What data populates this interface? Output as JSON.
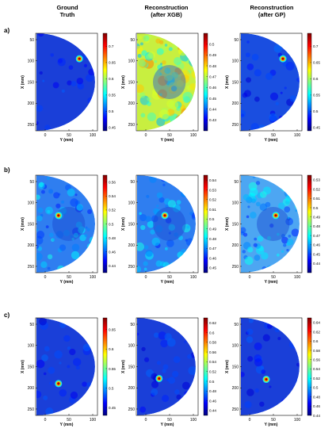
{
  "columns": [
    {
      "line1": "Ground",
      "line2": "Truth"
    },
    {
      "line1": "Reconstruction",
      "line2": "(after XGB)"
    },
    {
      "line1": "Reconstruction",
      "line2": "(after GP)"
    }
  ],
  "axes": {
    "xlabel": "Y (mm)",
    "ylabel": "X (mm)",
    "x_ticks": [
      "0",
      "50",
      "100"
    ],
    "y_ticks": [
      "50",
      "100",
      "150",
      "200",
      "250"
    ]
  },
  "rows": [
    {
      "label": "a)",
      "panels": [
        {
          "name": "ground-truth",
          "clim": [
            0.44,
            0.74
          ],
          "cbar_ticks": [
            "0.7",
            "0.65",
            "0.6",
            "0.55",
            "0.5",
            "0.45"
          ],
          "bg": "#1a3fd8",
          "noise": "low",
          "lesion": {
            "y": 72,
            "x": 95
          }
        },
        {
          "name": "xgb",
          "clim": [
            0.42,
            0.51
          ],
          "cbar_ticks": [
            "0.5",
            "0.49",
            "0.48",
            "0.47",
            "0.46",
            "0.45",
            "0.44",
            "0.43"
          ],
          "bg": "#c8ef40",
          "noise": "high",
          "lesion": null
        },
        {
          "name": "gp",
          "clim": [
            0.44,
            0.74
          ],
          "cbar_ticks": [
            "0.7",
            "0.65",
            "0.6",
            "0.55",
            "0.5",
            "0.45"
          ],
          "bg": "#1a4ee0",
          "noise": "low",
          "lesion": {
            "y": 70,
            "x": 95
          }
        }
      ]
    },
    {
      "label": "b)",
      "panels": [
        {
          "name": "ground-truth",
          "clim": [
            0.43,
            0.57
          ],
          "cbar_ticks": [
            "0.56",
            "0.54",
            "0.52",
            "0.5",
            "0.48",
            "0.46",
            "0.44"
          ],
          "bg": "#2f7ef0",
          "noise": "mid",
          "lesion": {
            "y": 28,
            "x": 130
          }
        },
        {
          "name": "xgb",
          "clim": [
            0.445,
            0.545
          ],
          "cbar_ticks": [
            "0.54",
            "0.53",
            "0.52",
            "0.51",
            "0.5",
            "0.49",
            "0.48",
            "0.47",
            "0.46",
            "0.45"
          ],
          "bg": "#2f7ef0",
          "noise": "mid",
          "lesion": {
            "y": 40,
            "x": 130
          }
        },
        {
          "name": "gp",
          "clim": [
            0.43,
            0.535
          ],
          "cbar_ticks": [
            "0.53",
            "0.52",
            "0.51",
            "0.5",
            "0.49",
            "0.48",
            "0.47",
            "0.46",
            "0.45",
            "0.44"
          ],
          "bg": "#4da6f2",
          "noise": "mid",
          "lesion": {
            "y": 55,
            "x": 130
          }
        }
      ]
    },
    {
      "label": "c)",
      "panels": [
        {
          "name": "ground-truth",
          "clim": [
            0.43,
            0.68
          ],
          "cbar_ticks": [
            "0.65",
            "0.6",
            "0.55",
            "0.5",
            "0.45"
          ],
          "bg": "#1a3fd8",
          "noise": "low",
          "lesion": {
            "y": 28,
            "x": 190
          }
        },
        {
          "name": "xgb",
          "clim": [
            0.43,
            0.63
          ],
          "cbar_ticks": [
            "0.62",
            "0.6",
            "0.58",
            "0.56",
            "0.54",
            "0.52",
            "0.5",
            "0.48",
            "0.46",
            "0.44"
          ],
          "bg": "#1a3fd8",
          "noise": "low",
          "lesion": {
            "y": 28,
            "x": 178
          }
        },
        {
          "name": "gp",
          "clim": [
            0.44,
            0.65
          ],
          "cbar_ticks": [
            "0.64",
            "0.62",
            "0.6",
            "0.58",
            "0.56",
            "0.54",
            "0.52",
            "0.5",
            "0.48",
            "0.46",
            "0.44"
          ],
          "bg": "#1a3fd8",
          "noise": "low",
          "lesion": {
            "y": 35,
            "x": 180
          }
        }
      ]
    }
  ]
}
